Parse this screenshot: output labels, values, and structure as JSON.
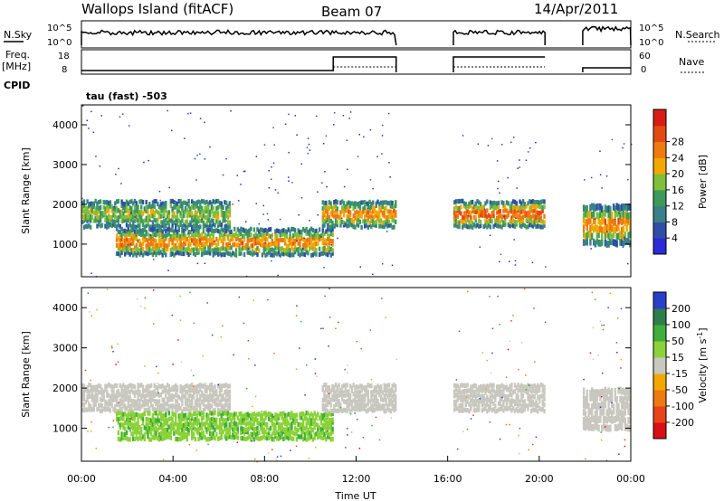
{
  "header": {
    "station": "Wallops Island (fitACF)",
    "beam": "Beam 07",
    "date": "14/Apr/2011"
  },
  "top_panels": {
    "nsky_label": "N.Sky",
    "nsearch_label": "N.Search",
    "nsky_ticks": [
      "10^5",
      "10^0"
    ],
    "nsearch_ticks": [
      "10^5",
      "10^0"
    ],
    "freq_label": "Freq.",
    "freq_unit": "[MHz]",
    "freq_ticks": [
      "18",
      "8"
    ],
    "nave_label": "Nave",
    "nave_ticks": [
      "60",
      "0"
    ],
    "cpid_label": "CPID",
    "cpid_text": "tau (fast) -503"
  },
  "chart_data": [
    {
      "type": "heatmap",
      "name": "power",
      "ylabel": "Slant Range [km]",
      "ylim": [
        180,
        4500
      ],
      "yticks": [
        1000,
        2000,
        3000,
        4000
      ],
      "xlim": [
        0,
        24
      ],
      "colorbar": {
        "label": "Power [dB]",
        "ticks": [
          "4",
          "8",
          "12",
          "16",
          "20",
          "24",
          "28"
        ],
        "colors": [
          "#2a2ad8",
          "#2e4fa8",
          "#3a7f8a",
          "#3c9b5c",
          "#7fbf3a",
          "#f2a800",
          "#ef7a10",
          "#e34a12",
          "#d81b14"
        ]
      },
      "data_gaps_ut": [
        [
          13.75,
          16.25
        ],
        [
          20.25,
          21.9
        ]
      ],
      "echo_bands": [
        {
          "t": [
            0.0,
            6.5
          ],
          "range_km": [
            1400,
            2100
          ],
          "color_db": 10
        },
        {
          "t": [
            1.5,
            11.0
          ],
          "range_km": [
            700,
            1400
          ],
          "color_db": 18
        },
        {
          "t": [
            10.5,
            13.75
          ],
          "range_km": [
            1400,
            2100
          ],
          "color_db": 18
        },
        {
          "t": [
            16.25,
            20.25
          ],
          "range_km": [
            1400,
            2100
          ],
          "color_db": 22
        },
        {
          "t": [
            21.9,
            24.0
          ],
          "range_km": [
            950,
            2000
          ],
          "color_db": 18
        }
      ]
    },
    {
      "type": "heatmap",
      "name": "velocity",
      "xlabel": "Time UT",
      "ylabel": "Slant Range [km]",
      "ylim": [
        180,
        4500
      ],
      "yticks": [
        1000,
        2000,
        3000,
        4000
      ],
      "xlim": [
        0,
        24
      ],
      "xticks": [
        "00:00",
        "04:00",
        "08:00",
        "12:00",
        "16:00",
        "20:00",
        "00:00"
      ],
      "colorbar": {
        "label": "Velocity [m s",
        "label_sup": "-1",
        "label_close": "]",
        "ticks": [
          "200",
          "100",
          "50",
          "15",
          "-15",
          "-50",
          "-100",
          "-200"
        ],
        "colors": [
          "#2a3fc8",
          "#2f7d4a",
          "#3fae3a",
          "#8bd23a",
          "#c8c8c0",
          "#f2a800",
          "#ef7a10",
          "#e8431a",
          "#d80f14"
        ]
      },
      "echo_bands": [
        {
          "t": [
            0.0,
            6.5
          ],
          "range_km": [
            1400,
            2100
          ],
          "velocity": 0
        },
        {
          "t": [
            1.5,
            11.0
          ],
          "range_km": [
            700,
            1400
          ],
          "velocity": 60
        },
        {
          "t": [
            10.5,
            13.75
          ],
          "range_km": [
            1400,
            2100
          ],
          "velocity": 0
        },
        {
          "t": [
            16.25,
            20.25
          ],
          "range_km": [
            1400,
            2100
          ],
          "velocity": 0
        },
        {
          "t": [
            21.9,
            24.0
          ],
          "range_km": [
            950,
            2000
          ],
          "velocity": 0
        }
      ]
    }
  ]
}
